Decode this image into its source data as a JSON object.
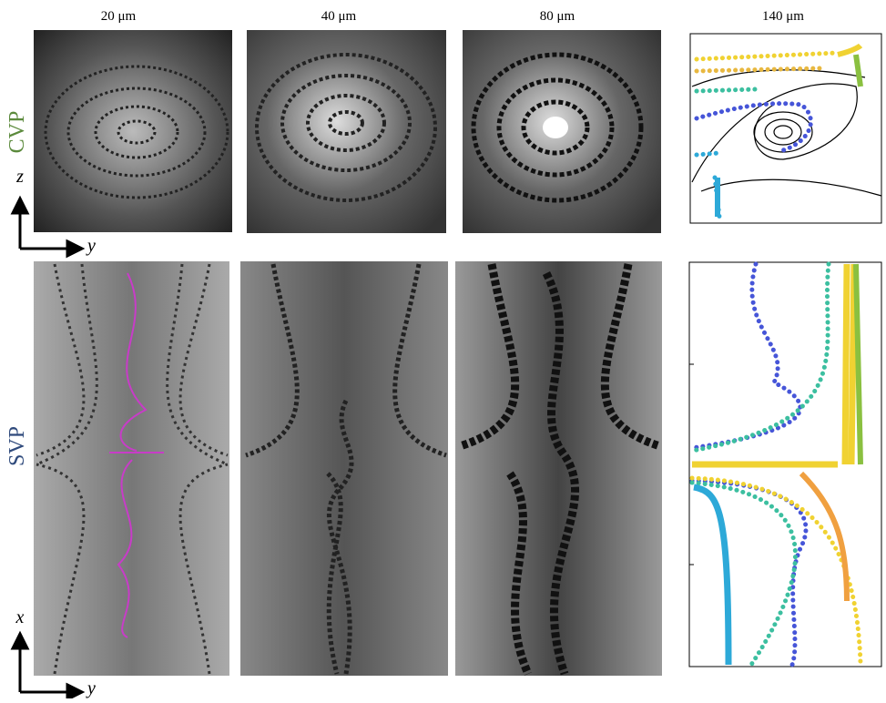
{
  "columns": [
    "20 μm",
    "40 μm",
    "80 μm",
    "140 μm"
  ],
  "rows": [
    "CVP",
    "SVP"
  ],
  "axes": {
    "top": {
      "vertical": "z",
      "horizontal": "y"
    },
    "bottom": {
      "vertical": "x",
      "horizontal": "y"
    }
  }
}
